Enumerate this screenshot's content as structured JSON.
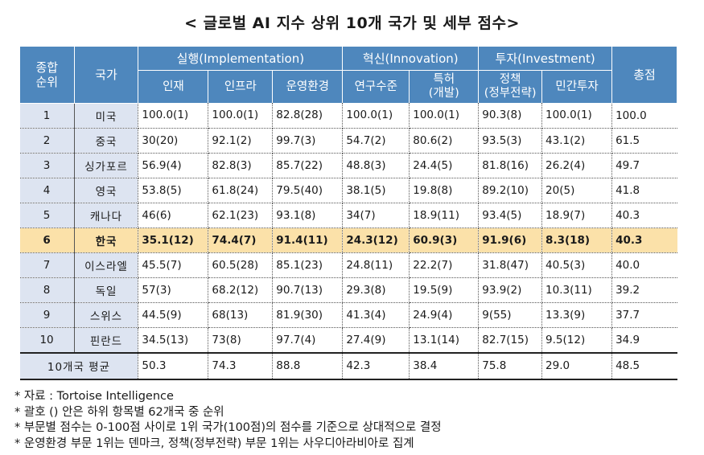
{
  "title": "< 글로벌 AI 지수 상위 10개 국가 및 세부 점수>",
  "header": {
    "rank": "종합\n순위",
    "country": "국가",
    "groups": [
      "실행(Implementation)",
      "혁신(Innovation)",
      "투자(Investment)"
    ],
    "sub": [
      "인재",
      "인프라",
      "운영환경",
      "연구수준",
      "특허\n(개발)",
      "정책\n(정부전략)",
      "민간투자"
    ],
    "total": "총점"
  },
  "rows": [
    {
      "rank": "1",
      "country": "미국",
      "v": [
        "100.0(1)",
        "100.0(1)",
        "82.8(28)",
        "100.0(1)",
        "100.0(1)",
        "90.3(8)",
        "100.0(1)",
        "100.0"
      ]
    },
    {
      "rank": "2",
      "country": "중국",
      "v": [
        "30(20)",
        "92.1(2)",
        "99.7(3)",
        "54.7(2)",
        "80.6(2)",
        "93.5(3)",
        "43.1(2)",
        "61.5"
      ]
    },
    {
      "rank": "3",
      "country": "싱가포르",
      "v": [
        "56.9(4)",
        "82.8(3)",
        "85.7(22)",
        "48.8(3)",
        "24.4(5)",
        "81.8(16)",
        "26.2(4)",
        "49.7"
      ]
    },
    {
      "rank": "4",
      "country": "영국",
      "v": [
        "53.8(5)",
        "61.8(24)",
        "79.5(40)",
        "38.1(5)",
        "19.8(8)",
        "89.2(10)",
        "20(5)",
        "41.8"
      ]
    },
    {
      "rank": "5",
      "country": "캐나다",
      "v": [
        "46(6)",
        "62.1(23)",
        "93.1(8)",
        "34(7)",
        "18.9(11)",
        "93.4(5)",
        "18.9(7)",
        "40.3"
      ]
    },
    {
      "rank": "6",
      "country": "한국",
      "v": [
        "35.1(12)",
        "74.4(7)",
        "91.4(11)",
        "24.3(12)",
        "60.9(3)",
        "91.9(6)",
        "8.3(18)",
        "40.3"
      ]
    },
    {
      "rank": "7",
      "country": "이스라엘",
      "v": [
        "45.5(7)",
        "60.5(28)",
        "85.1(23)",
        "24.8(11)",
        "22.2(7)",
        "31.8(47)",
        "40.5(3)",
        "40.0"
      ]
    },
    {
      "rank": "8",
      "country": "독일",
      "v": [
        "57(3)",
        "68.2(12)",
        "90.7(13)",
        "29.3(8)",
        "19.5(9)",
        "93.9(2)",
        "10.3(11)",
        "39.2"
      ]
    },
    {
      "rank": "9",
      "country": "스위스",
      "v": [
        "44.5(9)",
        "68(13)",
        "81.9(30)",
        "41.3(4)",
        "24.9(4)",
        "9(55)",
        "13.3(9)",
        "37.7"
      ]
    },
    {
      "rank": "10",
      "country": "핀란드",
      "v": [
        "34.5(13)",
        "73(8)",
        "97.7(4)",
        "27.4(9)",
        "13.1(14)",
        "82.7(15)",
        "9.5(12)",
        "34.9"
      ]
    }
  ],
  "highlight_country": "한국",
  "average": {
    "label": "10개국 평균",
    "v": [
      "50.3",
      "74.3",
      "88.8",
      "42.3",
      "38.4",
      "75.8",
      "29.0",
      "48.5"
    ]
  },
  "notes": [
    "* 자료 : Tortoise Intelligence",
    "* 괄호 () 안은 하위 항목별 62개국 중 순위",
    "* 부문별 점수는 0-100점 사이로 1위 국가(100점)의 점수를 기준으로 상대적으로 결정",
    "* 운영환경 부문 1위는 덴마크, 정책(정부전략) 부문 1위는 사우디아라비아로 집계"
  ],
  "colors": {
    "header": "#4e87bd",
    "label_bg": "#dde4f1",
    "highlight": "#fbe1a9"
  }
}
